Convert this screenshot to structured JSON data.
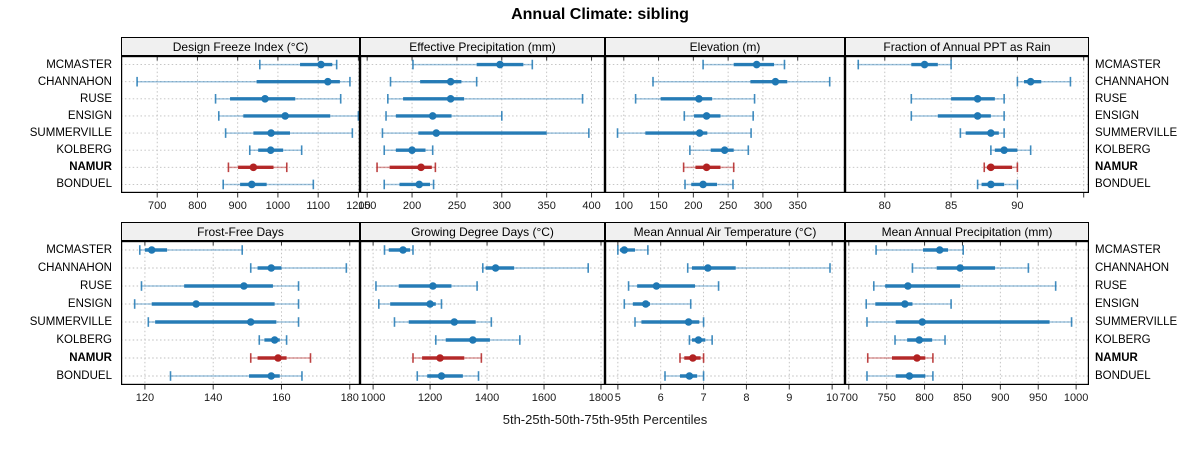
{
  "colors": {
    "series": "#1F78B4",
    "series_light": "rgba(31,120,180,0.42)",
    "highlight": "#B22222",
    "highlight_light": "rgba(178,34,34,0.45)",
    "grid": "#BFBFBF",
    "strip_bg": "#F0F0F0",
    "panel_border": "#000000",
    "tick": "#333333",
    "tick_label": "#1a1a1a"
  },
  "chart_data": {
    "type": "scatter",
    "subtype": "percentile_dotplot",
    "title": "Annual Climate: sibling",
    "xlabel": "5th-25th-50th-75th-95th Percentiles",
    "percentiles": [
      5,
      25,
      50,
      75,
      95
    ],
    "grid": "dotted",
    "legend_position": "none",
    "layout": "2 rows x 4 columns of panels, station labels on left and right",
    "stations_top_to_bottom": [
      "MCMASTER",
      "CHANNAHON",
      "RUSE",
      "ENSIGN",
      "SUMMERVILLE",
      "KOLBERG",
      "NAMUR",
      "BONDUEL"
    ],
    "highlighted_station": "NAMUR",
    "panels": [
      {
        "strip_label": "Design Freeze Index (°C)",
        "grid_row": 0,
        "grid_col": 0,
        "xlim": [
          610,
          1204
        ],
        "ticks": [
          700,
          800,
          900,
          1000,
          1100,
          1200
        ],
        "tick_labels": [
          "700",
          "800",
          "900",
          "1000",
          "1100",
          "1200"
        ],
        "values": [
          [
            955,
            1055,
            1107,
            1135,
            1146
          ],
          [
            650,
            947,
            1124,
            1154,
            1179
          ],
          [
            845,
            881,
            968,
            1043,
            1156
          ],
          [
            853,
            914,
            1018,
            1130,
            1200
          ],
          [
            870,
            939,
            983,
            1030,
            1185
          ],
          [
            930,
            951,
            982,
            1013,
            1059
          ],
          [
            877,
            901,
            939,
            989,
            1022
          ],
          [
            864,
            906,
            935,
            972,
            1088
          ]
        ]
      },
      {
        "strip_label": "Effective Precipitation (mm)",
        "grid_row": 0,
        "grid_col": 1,
        "xlim": [
          142,
          415
        ],
        "ticks": [
          150,
          200,
          250,
          300,
          350,
          400
        ],
        "tick_labels": [
          "150",
          "200",
          "250",
          "300",
          "350",
          "400"
        ],
        "values": [
          [
            201,
            272,
            298,
            324,
            334
          ],
          [
            176,
            209,
            243,
            255,
            272
          ],
          [
            173,
            190,
            243,
            258,
            390
          ],
          [
            171,
            182,
            223,
            244,
            300
          ],
          [
            167,
            207,
            227,
            350,
            397
          ],
          [
            169,
            182,
            200,
            215,
            223
          ],
          [
            161,
            175,
            210,
            222,
            226
          ],
          [
            169,
            186,
            208,
            220,
            224
          ]
        ]
      },
      {
        "strip_label": "Elevation (m)",
        "grid_row": 0,
        "grid_col": 2,
        "xlim": [
          73,
          418
        ],
        "ticks": [
          100,
          150,
          200,
          250,
          300,
          350
        ],
        "tick_labels": [
          "100",
          "150",
          "200",
          "250",
          "300",
          "350"
        ],
        "values": [
          [
            214,
            258,
            291,
            316,
            331
          ],
          [
            142,
            282,
            318,
            335,
            396
          ],
          [
            117,
            153,
            208,
            227,
            288
          ],
          [
            187,
            201,
            219,
            239,
            286
          ],
          [
            91,
            131,
            209,
            220,
            283
          ],
          [
            195,
            225,
            245,
            258,
            279
          ],
          [
            186,
            203,
            219,
            239,
            258
          ],
          [
            188,
            197,
            214,
            234,
            257
          ]
        ]
      },
      {
        "strip_label": "Fraction of Annual PPT as Rain",
        "grid_row": 0,
        "grid_col": 3,
        "xlim": [
          77,
          95.4
        ],
        "ticks": [
          80,
          85,
          90,
          95
        ],
        "tick_labels": [
          "80",
          "85",
          "90",
          ""
        ],
        "values": [
          [
            78,
            82,
            83,
            84,
            85
          ],
          [
            90,
            90.5,
            91,
            91.8,
            94
          ],
          [
            82,
            85,
            87,
            88.3,
            89
          ],
          [
            82,
            84,
            87,
            88,
            89
          ],
          [
            85.7,
            86.1,
            88,
            88.6,
            89
          ],
          [
            88,
            88.3,
            89,
            90,
            91
          ],
          [
            87.5,
            87.7,
            88,
            89.6,
            90
          ],
          [
            87,
            87.3,
            88,
            89,
            90
          ]
        ]
      },
      {
        "strip_label": "Frost-Free Days",
        "grid_row": 1,
        "grid_col": 0,
        "xlim": [
          113,
          183
        ],
        "ticks": [
          120,
          140,
          160,
          180
        ],
        "tick_labels": [
          "120",
          "140",
          "160",
          "180"
        ],
        "values": [
          [
            118.5,
            120,
            122,
            126.5,
            148.5
          ],
          [
            151,
            153,
            157,
            160,
            179
          ],
          [
            119,
            131.5,
            149,
            157.5,
            165
          ],
          [
            117,
            122,
            135,
            158,
            165
          ],
          [
            121,
            123,
            151,
            158.5,
            165
          ],
          [
            153.5,
            155,
            158,
            159.5,
            161.5
          ],
          [
            151,
            153,
            159,
            161.5,
            168.5
          ],
          [
            127.5,
            150.5,
            157,
            159.5,
            166
          ]
        ]
      },
      {
        "strip_label": "Growing Degree Days (°C)",
        "grid_row": 1,
        "grid_col": 1,
        "xlim": [
          954,
          1814
        ],
        "ticks": [
          1000,
          1200,
          1400,
          1600,
          1800
        ],
        "tick_labels": [
          "1000",
          "1200",
          "1400",
          "1600",
          "1800"
        ],
        "values": [
          [
            1040,
            1055,
            1105,
            1130,
            1140
          ],
          [
            1385,
            1395,
            1430,
            1495,
            1755
          ],
          [
            1010,
            1090,
            1210,
            1275,
            1365
          ],
          [
            1020,
            1060,
            1200,
            1220,
            1240
          ],
          [
            1075,
            1125,
            1285,
            1360,
            1415
          ],
          [
            1220,
            1255,
            1350,
            1410,
            1515
          ],
          [
            1140,
            1172,
            1235,
            1320,
            1380
          ],
          [
            1155,
            1190,
            1240,
            1315,
            1370
          ]
        ]
      },
      {
        "strip_label": "Mean Annual Air Temperature (°C)",
        "grid_row": 1,
        "grid_col": 2,
        "xlim": [
          4.7,
          10.3
        ],
        "ticks": [
          5,
          6,
          7,
          8,
          9,
          10
        ],
        "tick_labels": [
          "5",
          "6",
          "7",
          "8",
          "9",
          "10"
        ],
        "values": [
          [
            5.0,
            5.05,
            5.15,
            5.4,
            5.7
          ],
          [
            6.63,
            6.73,
            7.1,
            7.75,
            9.95
          ],
          [
            5.25,
            5.45,
            5.9,
            6.8,
            7.35
          ],
          [
            5.15,
            5.35,
            5.65,
            5.75,
            6.7
          ],
          [
            5.4,
            5.55,
            6.65,
            6.9,
            7.0
          ],
          [
            6.67,
            6.73,
            6.88,
            7.04,
            7.2
          ],
          [
            6.45,
            6.55,
            6.75,
            6.93,
            7.0
          ],
          [
            6.1,
            6.45,
            6.67,
            6.85,
            7.0
          ]
        ]
      },
      {
        "strip_label": "Mean Annual Precipitation (mm)",
        "grid_row": 1,
        "grid_col": 3,
        "xlim": [
          695,
          1017
        ],
        "ticks": [
          700,
          750,
          800,
          850,
          900,
          950,
          1000
        ],
        "tick_labels": [
          "700",
          "750",
          "800",
          "850",
          "900",
          "950",
          "1000"
        ],
        "values": [
          [
            736,
            798,
            820,
            831,
            851
          ],
          [
            784,
            816,
            847,
            893,
            937
          ],
          [
            733,
            748,
            778,
            847,
            973
          ],
          [
            723,
            735,
            774,
            784,
            835
          ],
          [
            724,
            762,
            797,
            965,
            994
          ],
          [
            761,
            777,
            793,
            810,
            827
          ],
          [
            725,
            757,
            790,
            801,
            811
          ],
          [
            724,
            762,
            780,
            801,
            811
          ]
        ]
      }
    ]
  }
}
